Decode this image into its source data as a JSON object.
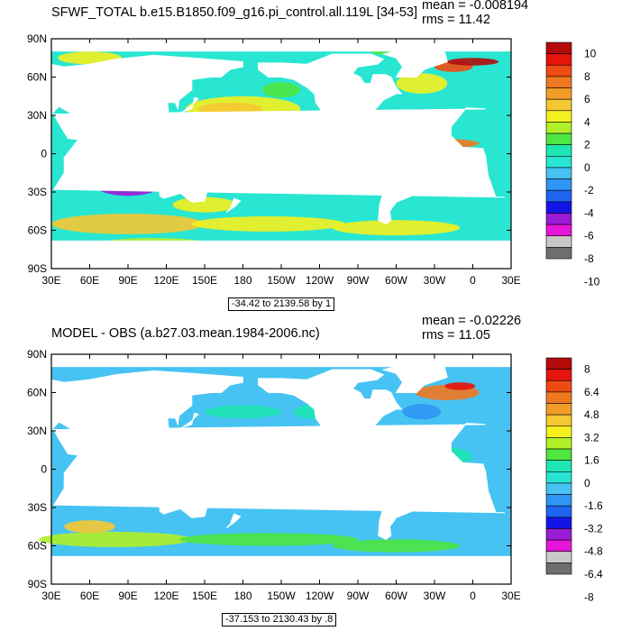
{
  "panels": [
    {
      "title": "SFWF_TOTAL b.e15.B1850.f09_g16.pi_control.all.119L [34-53]",
      "mean": "mean = -0.008194",
      "rms": "rms = 11.42",
      "range_label": "-34.42 to 2139.58 by 1",
      "colorbar_labels": [
        "10",
        "8",
        "6",
        "4",
        "2",
        "0",
        "-2",
        "-4",
        "-6",
        "-8",
        "-10"
      ],
      "contours": false
    },
    {
      "title": "MODEL - OBS (a.b27.03.mean.1984-2006.nc)",
      "mean": "mean = -0.02226",
      "rms": "rms = 11.05",
      "range_label": "-37.153 to 2130.43 by .8",
      "colorbar_labels": [
        "8",
        "6.4",
        "4.8",
        "3.2",
        "1.6",
        "0",
        "-1.6",
        "-3.2",
        "-4.8",
        "-6.4",
        "-8"
      ],
      "contours": true
    }
  ],
  "axes": {
    "lon_labels": [
      "30E",
      "60E",
      "90E",
      "120E",
      "150E",
      "180",
      "150W",
      "120W",
      "90W",
      "60W",
      "30W",
      "0",
      "30E"
    ],
    "lat_labels": [
      "90N",
      "60N",
      "30N",
      "0",
      "30S",
      "60S",
      "90S"
    ]
  },
  "chart_data": {
    "type": "heatmap",
    "projection": "cylindrical equidistant, 30E to 30E",
    "palette": [
      "#6e6e6e",
      "#c8c8c8",
      "#e616d8",
      "#9a1cd6",
      "#1414e6",
      "#1e64f0",
      "#2e96f4",
      "#46c3f2",
      "#28e6d2",
      "#1ee6b4",
      "#4ee640",
      "#b0f028",
      "#f4f01e",
      "#f5c832",
      "#f29c28",
      "#f07820",
      "#f04a14",
      "#e6140c",
      "#b40a0a"
    ],
    "legend_position": "right",
    "grid": false
  }
}
